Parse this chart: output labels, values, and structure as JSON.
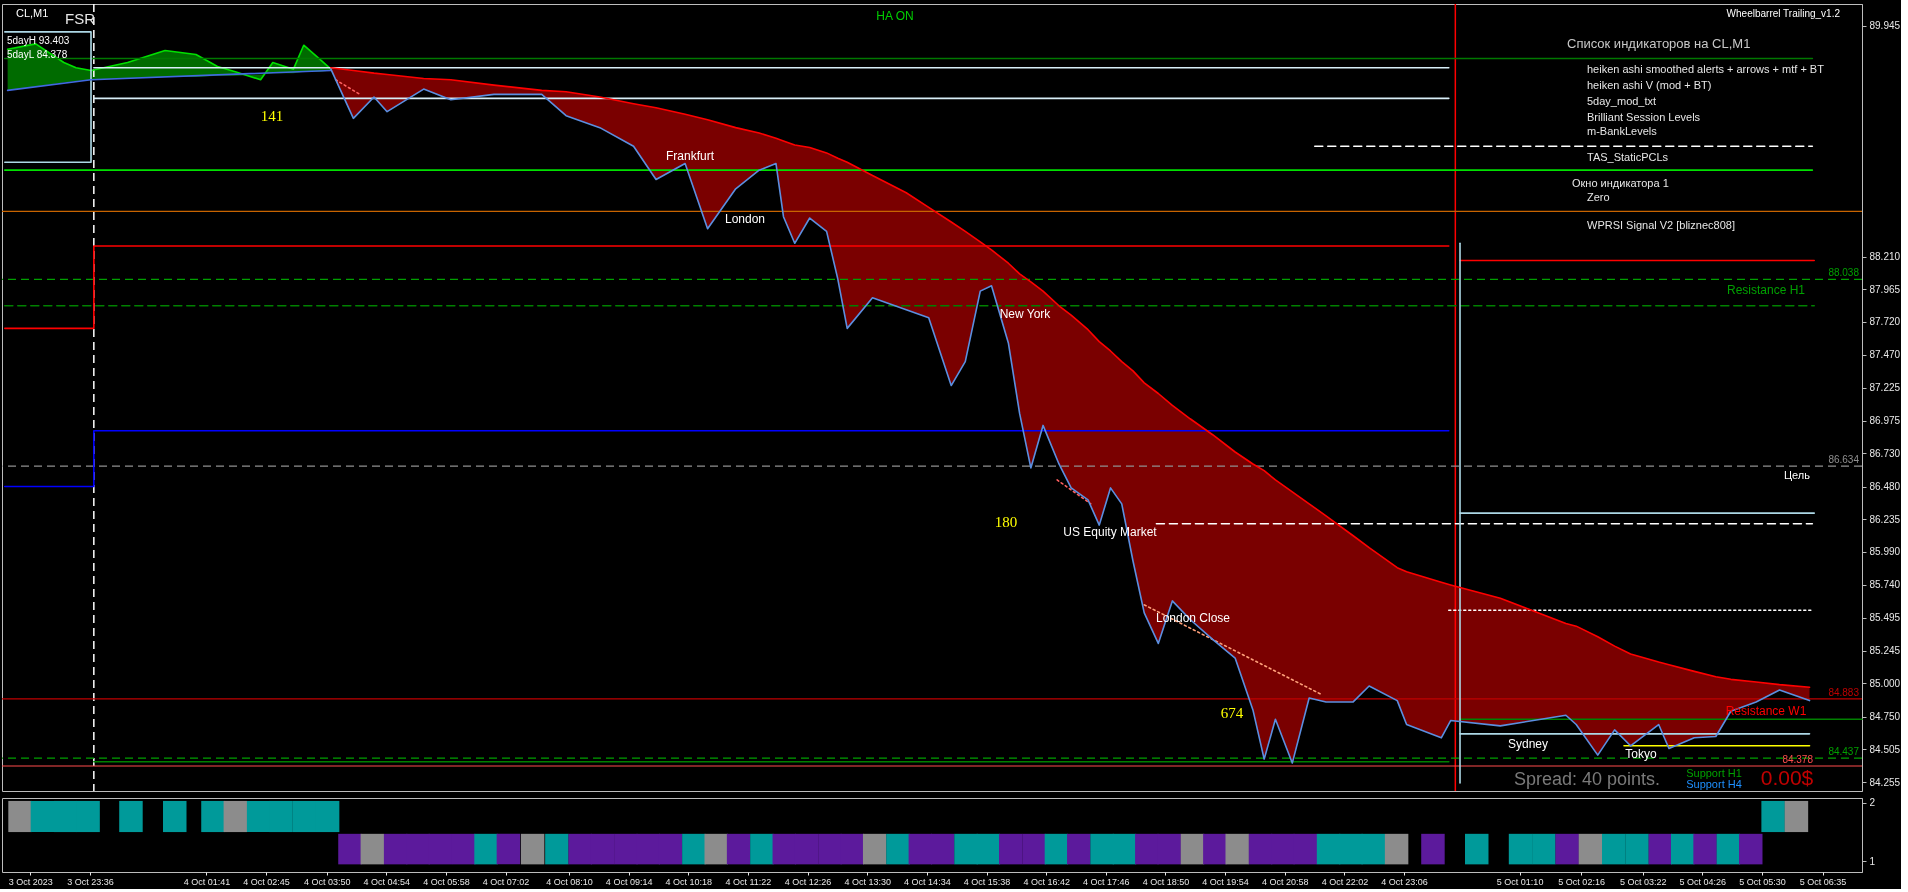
{
  "chart_data": [
    {
      "type": "line",
      "title": "CL,M1",
      "xlim": [
        "2023-10-03T22:07",
        "2023-10-05T07:12"
      ],
      "ylim": [
        84.19,
        90.11
      ],
      "yticks": [
        89.945,
        {
          "value": 88.21,
          "label": "88.210"
        },
        87.965,
        {
          "value": 87.72,
          "label": "87.720"
        },
        {
          "value": 87.47,
          "label": "87.470"
        },
        87.225,
        86.975,
        {
          "value": 86.73,
          "label": "86.730"
        },
        {
          "value": 86.48,
          "label": "86.480"
        },
        86.235,
        {
          "value": 85.99,
          "label": "85.990"
        },
        {
          "value": 85.74,
          "label": "85.740"
        },
        85.495,
        85.245,
        {
          "value": 85,
          "label": "85.000"
        },
        {
          "value": 84.75,
          "label": "84.750"
        },
        84.505,
        84.255
      ],
      "tick_labels": "y",
      "grid": false,
      "series": [
        {
          "type": "line",
          "color": "#00e000",
          "x": [
            "2023-10-03T22:13",
            "2023-10-03T22:43",
            "2023-10-03T23:13",
            "2023-10-03T23:26",
            "2023-10-03T23:42",
            "2023-10-04T00:21",
            "2023-10-04T01:01",
            "2023-10-04T01:34",
            "2023-10-04T01:57",
            "2023-10-04T02:16",
            "2023-10-04T02:43",
            "2023-10-04T02:56",
            "2023-10-04T03:18",
            "2023-10-04T03:29",
            "2023-10-04T03:47",
            "2023-10-04T03:58"
          ],
          "values": [
            89.77,
            89.81,
            89.67,
            89.63,
            89.61,
            89.67,
            89.76,
            89.73,
            89.64,
            89.6,
            89.54,
            89.67,
            89.62,
            89.8,
            89.69,
            89.62
          ],
          "lower": [
            89.46,
            89.49,
            89.52,
            89.53,
            89.54,
            89.55,
            89.56,
            89.56,
            89.57,
            89.57,
            89.58,
            89.59,
            89.59,
            89.6,
            89.6,
            89.61
          ],
          "upper": [
            89.77,
            89.81,
            89.67,
            89.63,
            89.61,
            89.67,
            89.76,
            89.73,
            89.64,
            89.6,
            89.54,
            89.67,
            89.62,
            89.8,
            89.69,
            89.62
          ]
        },
        {
          "type": "line",
          "color": "#007800",
          "x": [
            "2023-10-03T22:10",
            "2023-10-05T06:19"
          ],
          "values": [
            89.7,
            89.7
          ]
        },
        {
          "type": "line",
          "color": "#d8eef8",
          "x": [
            "2023-10-03T23:45",
            "2023-10-04T23:51"
          ],
          "values": [
            89.63,
            89.63
          ]
        },
        {
          "type": "line",
          "color": "#d8eef8",
          "x": [
            "2023-10-03T23:45",
            "2023-10-04T23:51"
          ],
          "values": [
            89.4,
            89.4
          ]
        },
        {
          "type": "line",
          "color": "#add8e6",
          "x": [
            "2023-10-03T22:10",
            "2023-10-03T23:42",
            "2023-10-03T23:42",
            "2023-10-03T22:10"
          ],
          "values": [
            89.9,
            89.9,
            88.92,
            88.92
          ]
        },
        {
          "type": "line",
          "color": "#00e000",
          "x": [
            "2023-10-03T22:10",
            "2023-10-05T06:19"
          ],
          "values": [
            88.86,
            88.86
          ]
        },
        {
          "type": "line",
          "color": "#ffffff",
          "line_style": "dashed",
          "x": [
            "2023-10-04T21:28",
            "2023-10-05T06:19"
          ],
          "values": [
            89.04,
            89.04
          ]
        },
        {
          "type": "line",
          "color": "#ff0000",
          "x": [
            "2023-10-03T22:10",
            "2023-10-03T23:45",
            "2023-10-03T23:45",
            "2023-10-04T23:51"
          ],
          "values": [
            87.67,
            87.67,
            88.29,
            88.29
          ]
        },
        {
          "type": "line",
          "color": "#ff0000",
          "x": [
            "2023-10-05T00:03",
            "2023-10-05T06:21"
          ],
          "values": [
            88.18,
            88.18
          ]
        },
        {
          "type": "line",
          "color": "#008000",
          "line_style": "dashed",
          "x": [
            "2023-10-03T22:10",
            "2023-10-05T06:21"
          ],
          "values": [
            87.84,
            87.84
          ]
        },
        {
          "type": "line",
          "color": "#0000ff",
          "x": [
            "2023-10-03T22:10",
            "2023-10-03T23:45",
            "2023-10-03T23:45",
            "2023-10-04T23:51"
          ],
          "values": [
            86.48,
            86.48,
            86.9,
            86.9
          ]
        },
        {
          "type": "line",
          "color": "#add8e6",
          "x": [
            "2023-10-05T00:03",
            "2023-10-05T06:21"
          ],
          "values": [
            86.28,
            86.28
          ]
        },
        {
          "type": "line",
          "color": "#ffffff",
          "line_style": "dashed",
          "x": [
            "2023-10-04T18:39",
            "2023-10-05T06:19"
          ],
          "values": [
            86.2,
            86.2
          ]
        },
        {
          "type": "line",
          "color": "#ffffff",
          "line_style": "dotted",
          "x": [
            "2023-10-04T23:51",
            "2023-10-05T06:19"
          ],
          "values": [
            85.55,
            85.55
          ]
        },
        {
          "type": "line",
          "color": "#008000",
          "x": [
            "2023-10-05T00:03",
            "2023-10-05T07:12"
          ],
          "values": [
            84.73,
            84.73
          ]
        },
        {
          "type": "line",
          "color": "#add8e6",
          "x": [
            "2023-10-05T00:03",
            "2023-10-05T06:16"
          ],
          "values": [
            84.62,
            84.62
          ]
        },
        {
          "type": "line",
          "color": "#ffff00",
          "x": [
            "2023-10-05T02:58",
            "2023-10-05T06:16"
          ],
          "values": [
            84.53,
            84.53
          ]
        },
        {
          "type": "line",
          "color": "#008000",
          "x": [
            "2023-10-03T23:45",
            "2023-10-04T23:51"
          ],
          "values": [
            84.41,
            84.41
          ]
        },
        {
          "type": "line",
          "color": "#add8e6",
          "x": [
            "2023-10-05T00:03",
            "2023-10-05T00:03"
          ],
          "values": [
            88.31,
            84.25
          ]
        },
        {
          "type": "line",
          "color": "#ff6060",
          "line_style": "dotted",
          "x": [
            "2023-10-04T04:03",
            "2023-10-04T04:29"
          ],
          "values": [
            89.54,
            89.43
          ]
        },
        {
          "type": "line",
          "color": "#ff6060",
          "line_style": "dotted",
          "x": [
            "2023-10-04T16:53",
            "2023-10-04T17:29"
          ],
          "values": [
            86.53,
            86.35
          ]
        },
        {
          "type": "line",
          "color": "#ffa07a",
          "line_style": "dotted",
          "x": [
            "2023-10-04T18:26",
            "2023-10-04T21:34"
          ],
          "values": [
            85.59,
            84.92
          ]
        },
        {
          "type": "line",
          "color": "#4169e1",
          "x": [
            "2023-10-03T22:13",
            "2023-10-03T23:42",
            "2023-10-04T03:58"
          ],
          "values": [
            89.46,
            89.54,
            89.61
          ]
        },
        {
          "type": "line",
          "color": "#ff0000",
          "x": [
            "2023-10-04T03:58",
            "2023-10-04T04:22",
            "2023-10-04T04:44",
            "2023-10-04T04:58",
            "2023-10-04T05:37",
            "2023-10-04T06:06",
            "2023-10-04T06:52",
            "2023-10-04T07:43",
            "2023-10-04T08:09",
            "2023-10-04T08:45",
            "2023-10-04T09:21",
            "2023-10-04T09:45",
            "2023-10-04T10:16",
            "2023-10-04T10:40",
            "2023-10-04T11:10",
            "2023-10-04T11:35",
            "2023-10-04T11:53",
            "2023-10-04T12:01",
            "2023-10-04T12:13",
            "2023-10-04T12:29",
            "2023-10-04T12:47",
            "2023-10-04T12:59",
            "2023-10-04T13:09",
            "2023-10-04T13:36",
            "2023-10-04T14:12",
            "2023-10-04T14:36",
            "2023-10-04T15:00",
            "2023-10-04T15:15",
            "2023-10-04T15:31",
            "2023-10-04T15:43",
            "2023-10-04T16:01",
            "2023-10-04T16:13",
            "2023-10-04T16:25",
            "2023-10-04T16:38",
            "2023-10-04T16:55",
            "2023-10-04T17:08",
            "2023-10-04T17:26",
            "2023-10-04T17:38",
            "2023-10-04T17:50",
            "2023-10-04T18:02",
            "2023-10-04T18:14",
            "2023-10-04T18:26",
            "2023-10-04T18:41",
            "2023-10-04T18:56",
            "2023-10-04T19:15",
            "2023-10-04T19:39",
            "2023-10-04T20:03",
            "2023-10-04T20:22",
            "2023-10-04T20:34",
            "2023-10-04T20:46",
            "2023-10-04T21:04",
            "2023-10-04T21:22",
            "2023-10-04T21:40",
            "2023-10-04T22:09",
            "2023-10-04T22:26",
            "2023-10-04T22:56",
            "2023-10-04T23:06",
            "2023-10-04T23:43",
            "2023-10-04T23:53",
            "2023-10-05T00:46",
            "2023-10-05T01:56",
            "2023-10-05T02:07",
            "2023-10-05T02:30",
            "2023-10-05T02:48",
            "2023-10-05T03:05",
            "2023-10-05T03:35",
            "2023-10-05T03:46",
            "2023-10-05T04:13",
            "2023-10-05T04:36",
            "2023-10-05T04:52",
            "2023-10-05T05:19",
            "2023-10-05T05:44",
            "2023-10-05T06:16"
          ],
          "values": [
            89.63,
            89.61,
            89.59,
            89.58,
            89.55,
            89.54,
            89.5,
            89.46,
            89.45,
            89.41,
            89.36,
            89.33,
            89.28,
            89.24,
            89.18,
            89.14,
            89.1,
            89.08,
            89.05,
            89.03,
            88.99,
            88.95,
            88.92,
            88.82,
            88.69,
            88.58,
            88.47,
            88.4,
            88.32,
            88.26,
            88.16,
            88.08,
            88.02,
            87.95,
            87.84,
            87.77,
            87.66,
            87.57,
            87.5,
            87.42,
            87.35,
            87.26,
            87.18,
            87.09,
            86.99,
            86.87,
            86.74,
            86.65,
            86.6,
            86.53,
            86.44,
            86.35,
            86.26,
            86.11,
            86.02,
            85.87,
            85.84,
            85.76,
            85.74,
            85.64,
            85.45,
            85.43,
            85.35,
            85.28,
            85.22,
            85.16,
            85.14,
            85.09,
            85.05,
            85.03,
            85.01,
            84.99,
            84.97
          ],
          "upper": [
            89.63,
            89.61,
            89.59,
            89.58,
            89.55,
            89.54,
            89.5,
            89.46,
            89.45,
            89.41,
            89.36,
            89.33,
            89.28,
            89.24,
            89.18,
            89.14,
            89.1,
            89.08,
            89.05,
            89.03,
            88.99,
            88.95,
            88.92,
            88.82,
            88.69,
            88.58,
            88.47,
            88.4,
            88.32,
            88.26,
            88.16,
            88.08,
            88.02,
            87.95,
            87.84,
            87.77,
            87.66,
            87.57,
            87.5,
            87.42,
            87.35,
            87.26,
            87.18,
            87.09,
            86.99,
            86.87,
            86.74,
            86.65,
            86.6,
            86.53,
            86.44,
            86.35,
            86.26,
            86.11,
            86.02,
            85.87,
            85.84,
            85.76,
            85.74,
            85.64,
            85.45,
            85.43,
            85.35,
            85.28,
            85.22,
            85.16,
            85.14,
            85.09,
            85.05,
            85.03,
            85.01,
            84.99,
            84.97
          ],
          "lower": [
            89.62,
            89.25,
            89.41,
            89.3,
            89.47,
            89.39,
            89.43,
            89.43,
            89.27,
            89.18,
            89.04,
            88.79,
            88.91,
            88.42,
            88.72,
            88.86,
            88.91,
            88.51,
            88.31,
            88.5,
            88.4,
            88.04,
            87.67,
            87.9,
            87.81,
            87.75,
            87.24,
            87.42,
            87.95,
            87.99,
            87.56,
            87.03,
            86.62,
            86.94,
            86.65,
            86.47,
            86.38,
            86.19,
            86.47,
            86.35,
            85.92,
            85.53,
            85.3,
            85.62,
            85.48,
            85.33,
            85.19,
            84.8,
            84.43,
            84.73,
            84.4,
            84.89,
            84.86,
            84.86,
            84.98,
            84.87,
            84.69,
            84.59,
            84.72,
            84.68,
            84.76,
            84.69,
            84.46,
            84.65,
            84.53,
            84.69,
            84.51,
            84.59,
            84.6,
            84.79,
            84.86,
            84.95,
            84.87
          ]
        },
        {
          "type": "line",
          "color": "#5b8fe0",
          "x": [
            "2023-10-04T03:58",
            "2023-10-04T04:22",
            "2023-10-04T04:44",
            "2023-10-04T04:58",
            "2023-10-04T05:37",
            "2023-10-04T06:06",
            "2023-10-04T06:52",
            "2023-10-04T07:43",
            "2023-10-04T08:09",
            "2023-10-04T08:45",
            "2023-10-04T09:21",
            "2023-10-04T09:45",
            "2023-10-04T10:16",
            "2023-10-04T10:40",
            "2023-10-04T11:10",
            "2023-10-04T11:35",
            "2023-10-04T11:53",
            "2023-10-04T12:01",
            "2023-10-04T12:13",
            "2023-10-04T12:29",
            "2023-10-04T12:47",
            "2023-10-04T12:59",
            "2023-10-04T13:09",
            "2023-10-04T13:36",
            "2023-10-04T14:12",
            "2023-10-04T14:36",
            "2023-10-04T15:00",
            "2023-10-04T15:15",
            "2023-10-04T15:31",
            "2023-10-04T15:43",
            "2023-10-04T16:01",
            "2023-10-04T16:13",
            "2023-10-04T16:25",
            "2023-10-04T16:38",
            "2023-10-04T16:55",
            "2023-10-04T17:08",
            "2023-10-04T17:26",
            "2023-10-04T17:38",
            "2023-10-04T17:50",
            "2023-10-04T18:02",
            "2023-10-04T18:14",
            "2023-10-04T18:26",
            "2023-10-04T18:41",
            "2023-10-04T18:56",
            "2023-10-04T19:15",
            "2023-10-04T19:39",
            "2023-10-04T20:03",
            "2023-10-04T20:22",
            "2023-10-04T20:34",
            "2023-10-04T20:46",
            "2023-10-04T21:04",
            "2023-10-04T21:22",
            "2023-10-04T21:40",
            "2023-10-04T22:09",
            "2023-10-04T22:26",
            "2023-10-04T22:56",
            "2023-10-04T23:06",
            "2023-10-04T23:43",
            "2023-10-04T23:53",
            "2023-10-05T00:46",
            "2023-10-05T01:56",
            "2023-10-05T02:07",
            "2023-10-05T02:30",
            "2023-10-05T02:48",
            "2023-10-05T03:05",
            "2023-10-05T03:35",
            "2023-10-05T03:46",
            "2023-10-05T04:13",
            "2023-10-05T04:36",
            "2023-10-05T04:52",
            "2023-10-05T05:19",
            "2023-10-05T05:44",
            "2023-10-05T06:16"
          ],
          "values": [
            89.62,
            89.25,
            89.41,
            89.3,
            89.47,
            89.39,
            89.43,
            89.43,
            89.27,
            89.18,
            89.04,
            88.79,
            88.91,
            88.42,
            88.72,
            88.86,
            88.91,
            88.51,
            88.31,
            88.5,
            88.4,
            88.04,
            87.67,
            87.9,
            87.81,
            87.75,
            87.24,
            87.42,
            87.95,
            87.99,
            87.56,
            87.03,
            86.62,
            86.94,
            86.65,
            86.47,
            86.38,
            86.19,
            86.47,
            86.35,
            85.92,
            85.53,
            85.3,
            85.62,
            85.48,
            85.33,
            85.19,
            84.8,
            84.43,
            84.73,
            84.4,
            84.89,
            84.86,
            84.86,
            84.98,
            84.87,
            84.69,
            84.59,
            84.72,
            84.68,
            84.76,
            84.69,
            84.46,
            84.65,
            84.53,
            84.69,
            84.51,
            84.59,
            84.6,
            84.79,
            84.86,
            84.95,
            84.87
          ]
        }
      ],
      "ref_lines": [
        {
          "axis": "x",
          "value": "2023-10-03T23:45",
          "color": "#ffffff",
          "line_style": "dashed"
        },
        {
          "axis": "x",
          "value": "2023-10-04T23:58",
          "color": "#ff0000"
        },
        {
          "axis": "y",
          "value": 88.55,
          "color": "#c86400"
        },
        {
          "axis": "y",
          "value": 88.038,
          "label": "88.038",
          "color": "#00a000",
          "line_style": "dashed"
        },
        {
          "axis": "y",
          "value": 86.634,
          "label": "86.634",
          "color": "#909090",
          "line_style": "dashed"
        },
        {
          "axis": "y",
          "value": 84.883,
          "label": "84.883",
          "color": "#c00000"
        },
        {
          "axis": "y",
          "value": 84.437,
          "label": "84.437",
          "color": "#00a000",
          "line_style": "dashed"
        },
        {
          "axis": "y",
          "value": 84.378,
          "label": "84.378",
          "color": "#ff4d4d"
        }
      ],
      "annotations": [
        "FSR",
        "5dayH 93.403",
        "5dayL 84.378",
        "HA ON",
        "Wheelbarrel Trailing_v1.2",
        "Список индикаторов на CL,M1",
        "heiken ashi smoothed alerts + arrows + mtf + BT",
        "heiken ashi V (mod + BT)",
        "5day_mod_txt",
        "Brilliant Session Levels",
        "m-BankLevels",
        "TAS_StaticPCLs",
        "Окно индикатора 1",
        "Zero",
        "WPRSI Signal V2 [bliznec808]",
        "Spread: 40 points.",
        "0.00$",
        "141",
        "Frankfurt",
        "London",
        "New York",
        "180",
        "US Equity Market",
        "London Close",
        "674",
        "Sydney",
        "Tokyo",
        "Resistance H1",
        "Цель",
        "Resistance W1",
        "Support H1",
        "Support H4"
      ]
    },
    {
      "type": "bar",
      "x": [
        "2023-10-03T22:21",
        "2023-10-03T22:45",
        "2023-10-03T23:10",
        "2023-10-03T23:34",
        "2023-10-04T00:20",
        "2023-10-04T01:07",
        "2023-10-04T01:48",
        "2023-10-04T02:12",
        "2023-10-04T02:37",
        "2023-10-04T03:01",
        "2023-10-04T03:26",
        "2023-10-04T03:51",
        "2023-10-04T04:15",
        "2023-10-04T04:39",
        "2023-10-04T05:04",
        "2023-10-04T05:28",
        "2023-10-04T05:52",
        "2023-10-04T06:17",
        "2023-10-04T06:41",
        "2023-10-04T07:05",
        "2023-10-04T07:31",
        "2023-10-04T07:57",
        "2023-10-04T08:22",
        "2023-10-04T08:46",
        "2023-10-04T09:11",
        "2023-10-04T09:35",
        "2023-10-04T09:59",
        "2023-10-04T10:24",
        "2023-10-04T10:48",
        "2023-10-04T11:12",
        "2023-10-04T11:37",
        "2023-10-04T12:01",
        "2023-10-04T12:25",
        "2023-10-04T12:50",
        "2023-10-04T13:14",
        "2023-10-04T13:38",
        "2023-10-04T14:03",
        "2023-10-04T14:27",
        "2023-10-04T14:51",
        "2023-10-04T15:16",
        "2023-10-04T15:40",
        "2023-10-04T16:04",
        "2023-10-04T16:29",
        "2023-10-04T16:53",
        "2023-10-04T17:17",
        "2023-10-04T17:42",
        "2023-10-04T18:06",
        "2023-10-04T18:30",
        "2023-10-04T18:54",
        "2023-10-04T19:19",
        "2023-10-04T19:43",
        "2023-10-04T20:07",
        "2023-10-04T20:32",
        "2023-10-04T20:56",
        "2023-10-04T21:20",
        "2023-10-04T21:45",
        "2023-10-04T22:09",
        "2023-10-04T22:33",
        "2023-10-04T22:58",
        "2023-10-04T23:37",
        "2023-10-05T00:24",
        "2023-10-05T01:11",
        "2023-10-05T01:36",
        "2023-10-05T02:01",
        "2023-10-05T02:26",
        "2023-10-05T02:51",
        "2023-10-05T03:16",
        "2023-10-05T03:41",
        "2023-10-05T04:05",
        "2023-10-05T04:29",
        "2023-10-05T04:54",
        "2023-10-05T05:18",
        "2023-10-05T05:42",
        "2023-10-05T06:07"
      ],
      "base": [
        1.5,
        1.5,
        1.5,
        1.5,
        1.5,
        1.5,
        1.5,
        1.5,
        1.5,
        1.5,
        1.5,
        1.5,
        0.95,
        0.95,
        0.95,
        0.95,
        0.95,
        0.95,
        0.95,
        0.95,
        0.95,
        0.95,
        0.95,
        0.95,
        0.95,
        0.95,
        0.95,
        0.95,
        0.95,
        0.95,
        0.95,
        0.95,
        0.95,
        0.95,
        0.95,
        0.95,
        0.95,
        0.95,
        0.95,
        0.95,
        0.95,
        0.95,
        0.95,
        0.95,
        0.95,
        0.95,
        0.95,
        0.95,
        0.95,
        0.95,
        0.95,
        0.95,
        0.95,
        0.95,
        0.95,
        0.95,
        0.95,
        0.95,
        0.95,
        0.95,
        0.95,
        0.95,
        0.95,
        0.95,
        0.95,
        0.95,
        0.95,
        0.95,
        0.95,
        0.95,
        0.95,
        0.95,
        1.5,
        1.5
      ],
      "values": [
        0.53,
        0.53,
        0.53,
        0.53,
        0.53,
        0.53,
        0.53,
        0.53,
        0.53,
        0.53,
        0.53,
        0.53,
        0.52,
        0.52,
        0.52,
        0.52,
        0.52,
        0.52,
        0.52,
        0.52,
        0.52,
        0.52,
        0.52,
        0.52,
        0.52,
        0.52,
        0.52,
        0.52,
        0.52,
        0.52,
        0.52,
        0.52,
        0.52,
        0.52,
        0.52,
        0.52,
        0.52,
        0.52,
        0.52,
        0.52,
        0.52,
        0.52,
        0.52,
        0.52,
        0.52,
        0.52,
        0.52,
        0.52,
        0.52,
        0.52,
        0.52,
        0.52,
        0.52,
        0.52,
        0.52,
        0.52,
        0.52,
        0.52,
        0.52,
        0.52,
        0.52,
        0.52,
        0.52,
        0.52,
        0.52,
        0.52,
        0.52,
        0.52,
        0.52,
        0.52,
        0.52,
        0.52,
        0.53,
        0.53
      ],
      "colors": [
        "#8c8c8c",
        "#009a9a",
        "#009a9a",
        "#009a9a",
        "#009a9a",
        "#009a9a",
        "#009a9a",
        "#8c8c8c",
        "#009a9a",
        "#009a9a",
        "#009a9a",
        "#009a9a",
        "#5c1a9c",
        "#8c8c8c",
        "#5c1a9c",
        "#5c1a9c",
        "#5c1a9c",
        "#5c1a9c",
        "#009a9a",
        "#5c1a9c",
        "#8c8c8c",
        "#009a9a",
        "#5c1a9c",
        "#5c1a9c",
        "#5c1a9c",
        "#5c1a9c",
        "#5c1a9c",
        "#009a9a",
        "#8c8c8c",
        "#5c1a9c",
        "#009a9a",
        "#5c1a9c",
        "#5c1a9c",
        "#5c1a9c",
        "#5c1a9c",
        "#8c8c8c",
        "#009a9a",
        "#5c1a9c",
        "#5c1a9c",
        "#009a9a",
        "#009a9a",
        "#5c1a9c",
        "#5c1a9c",
        "#009a9a",
        "#5c1a9c",
        "#009a9a",
        "#009a9a",
        "#5c1a9c",
        "#5c1a9c",
        "#8c8c8c",
        "#5c1a9c",
        "#8c8c8c",
        "#5c1a9c",
        "#5c1a9c",
        "#5c1a9c",
        "#009a9a",
        "#009a9a",
        "#009a9a",
        "#8c8c8c",
        "#5c1a9c",
        "#009a9a",
        "#009a9a",
        "#009a9a",
        "#5c1a9c",
        "#8c8c8c",
        "#009a9a",
        "#009a9a",
        "#5c1a9c",
        "#009a9a",
        "#5c1a9c",
        "#009a9a",
        "#5c1a9c",
        "#009a9a",
        "#8c8c8c"
      ],
      "xlim": [
        "2023-10-03T22:07",
        "2023-10-05T07:12"
      ],
      "ylim": [
        0.82,
        2.08
      ],
      "yticks": [
        2,
        1
      ],
      "xticks": [
        {
          "value": "2023-10-03T22:32",
          "label": "3 Oct 2023"
        },
        {
          "value": "2023-10-03T23:36",
          "label": "3 Oct 23:36"
        },
        {
          "value": "2023-10-04T01:41",
          "label": "4 Oct 01:41"
        },
        {
          "value": "2023-10-04T02:45",
          "label": "4 Oct 02:45"
        },
        {
          "value": "2023-10-04T03:50",
          "label": "4 Oct 03:50"
        },
        {
          "value": "2023-10-04T04:54",
          "label": "4 Oct 04:54"
        },
        {
          "value": "2023-10-04T05:58",
          "label": "4 Oct 05:58"
        },
        {
          "value": "2023-10-04T07:02",
          "label": "4 Oct 07:02"
        },
        {
          "value": "2023-10-04T08:10",
          "label": "4 Oct 08:10"
        },
        {
          "value": "2023-10-04T09:14",
          "label": "4 Oct 09:14"
        },
        {
          "value": "2023-10-04T10:18",
          "label": "4 Oct 10:18"
        },
        {
          "value": "2023-10-04T11:22",
          "label": "4 Oct 11:22"
        },
        {
          "value": "2023-10-04T12:26",
          "label": "4 Oct 12:26"
        },
        {
          "value": "2023-10-04T13:30",
          "label": "4 Oct 13:30"
        },
        {
          "value": "2023-10-04T14:34",
          "label": "4 Oct 14:34"
        },
        {
          "value": "2023-10-04T15:38",
          "label": "4 Oct 15:38"
        },
        {
          "value": "2023-10-04T16:42",
          "label": "4 Oct 16:42"
        },
        {
          "value": "2023-10-04T17:46",
          "label": "4 Oct 17:46"
        },
        {
          "value": "2023-10-04T18:50",
          "label": "4 Oct 18:50"
        },
        {
          "value": "2023-10-04T19:54",
          "label": "4 Oct 19:54"
        },
        {
          "value": "2023-10-04T20:58",
          "label": "4 Oct 20:58"
        },
        {
          "value": "2023-10-04T22:02",
          "label": "4 Oct 22:02"
        },
        {
          "value": "2023-10-04T23:06",
          "label": "4 Oct 23:06"
        },
        {
          "value": "2023-10-05T01:10",
          "label": "5 Oct 01:10"
        },
        {
          "value": "2023-10-05T02:16",
          "label": "5 Oct 02:16"
        },
        {
          "value": "2023-10-05T03:22",
          "label": "5 Oct 03:22"
        },
        {
          "value": "2023-10-05T04:26",
          "label": "5 Oct 04:26"
        },
        {
          "value": "2023-10-05T05:30",
          "label": "5 Oct 05:30"
        },
        {
          "value": "2023-10-05T06:35",
          "label": "5 Oct 06:35"
        }
      ],
      "grid": false
    }
  ]
}
